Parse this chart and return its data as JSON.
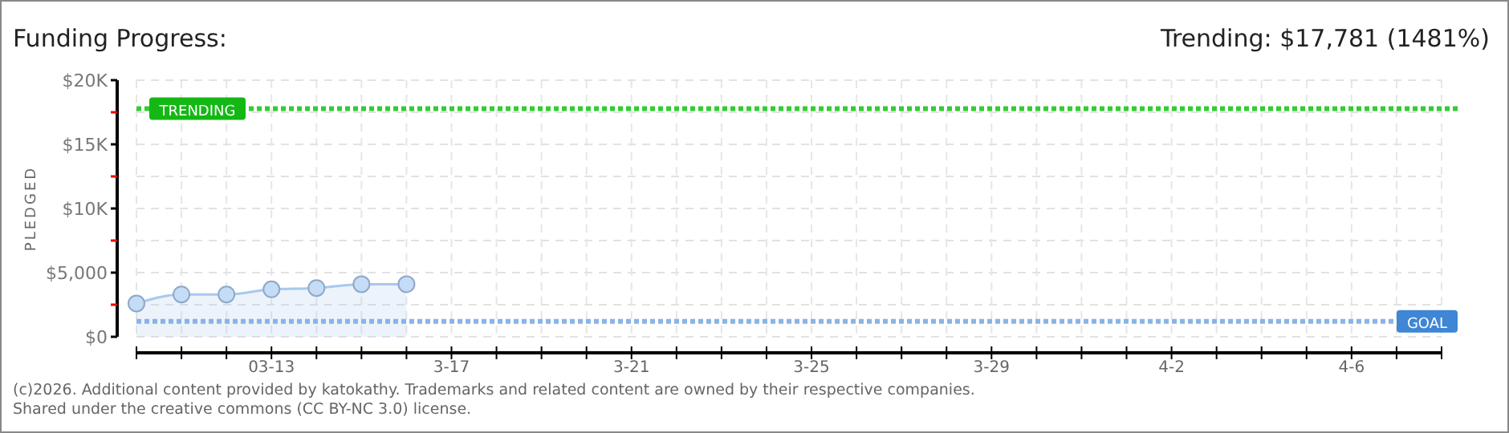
{
  "chart_data": {
    "type": "area",
    "title": "Funding Progress:",
    "subtitle": "Trending: $17,781 (1481%)",
    "ylabel": "PLEDGED",
    "x": [
      "--03-10",
      "--03-11",
      "--03-12",
      "--03-13",
      "--03-14",
      "--03-15",
      "--03-16"
    ],
    "series": [
      {
        "color": "#a8c8ee",
        "values": [
          2600,
          3300,
          3300,
          3700,
          3800,
          4100,
          4100
        ]
      }
    ],
    "marker": "circle",
    "grid": true,
    "xlim": [
      "--03-10",
      "--04-08"
    ],
    "xticks": [
      {
        "value": "--03-10",
        "label": null
      },
      {
        "value": "--03-11",
        "label": null
      },
      {
        "value": "--03-12",
        "label": null
      },
      {
        "value": "--03-13",
        "label": "03-13"
      },
      {
        "value": "--03-14",
        "label": null
      },
      {
        "value": "--03-15",
        "label": null
      },
      {
        "value": "--03-16",
        "label": null
      },
      {
        "value": "--03-17",
        "label": "3-17"
      },
      {
        "value": "--03-18",
        "label": null
      },
      {
        "value": "--03-19",
        "label": null
      },
      {
        "value": "--03-20",
        "label": null
      },
      {
        "value": "--03-21",
        "label": "3-21"
      },
      {
        "value": "--03-22",
        "label": null
      },
      {
        "value": "--03-23",
        "label": null
      },
      {
        "value": "--03-24",
        "label": null
      },
      {
        "value": "--03-25",
        "label": "3-25"
      },
      {
        "value": "--03-26",
        "label": null
      },
      {
        "value": "--03-27",
        "label": null
      },
      {
        "value": "--03-28",
        "label": null
      },
      {
        "value": "--03-29",
        "label": "3-29"
      },
      {
        "value": "--03-30",
        "label": null
      },
      {
        "value": "--03-31",
        "label": null
      },
      {
        "value": "--04-01",
        "label": null
      },
      {
        "value": "--04-02",
        "label": "4-2"
      },
      {
        "value": "--04-03",
        "label": null
      },
      {
        "value": "--04-04",
        "label": null
      },
      {
        "value": "--04-05",
        "label": null
      },
      {
        "value": "--04-06",
        "label": "4-6"
      },
      {
        "value": "--04-07",
        "label": null
      },
      {
        "value": "--04-08",
        "label": null
      }
    ],
    "ylim": [
      0,
      20000
    ],
    "yticks": [
      {
        "value": 0,
        "label": "$0"
      },
      {
        "value": 2500,
        "label": null
      },
      {
        "value": 5000,
        "label": "$5,000"
      },
      {
        "value": 7500,
        "label": null
      },
      {
        "value": 10000,
        "label": "$10K"
      },
      {
        "value": 12500,
        "label": null
      },
      {
        "value": 15000,
        "label": "$15K"
      },
      {
        "value": 17500,
        "label": null
      },
      {
        "value": 20000,
        "label": "$20K"
      }
    ],
    "ref_lines": [
      {
        "axis": "y",
        "value": 17781,
        "label": "TRENDING",
        "color": "#33cc33",
        "line_style": "dotted"
      },
      {
        "axis": "y",
        "value": 1200,
        "label": "GOAL",
        "color": "#8ab4e6",
        "line_style": "dotted"
      }
    ],
    "annotations": [
      "(c)2026. Additional content provided by katokathy. Trademarks and related content are owned by their respective companies.",
      "Shared under the creative commons (CC BY-NC 3.0) license."
    ]
  }
}
